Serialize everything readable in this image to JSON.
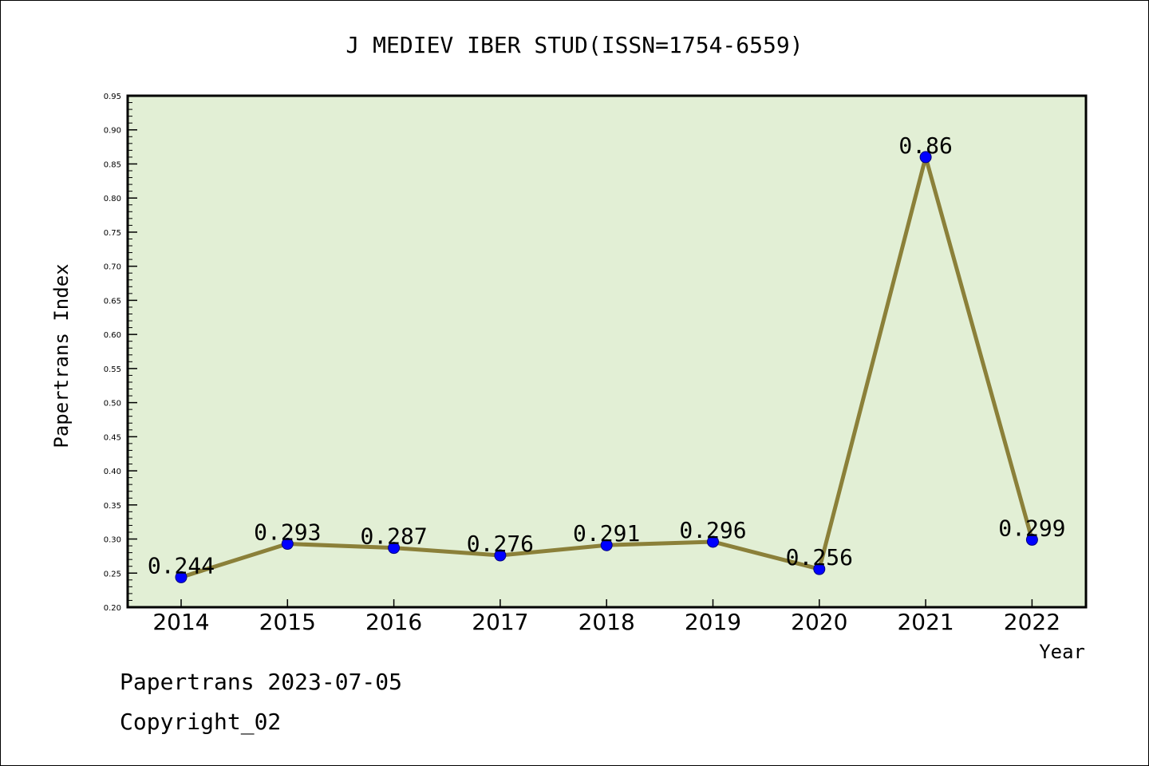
{
  "chart_data": {
    "type": "line",
    "title": "J MEDIEV IBER STUD(ISSN=1754-6559)",
    "xlabel": "Year",
    "ylabel": "Papertrans Index",
    "categories": [
      "2014",
      "2015",
      "2016",
      "2017",
      "2018",
      "2019",
      "2020",
      "2021",
      "2022"
    ],
    "values": [
      0.244,
      0.293,
      0.287,
      0.276,
      0.291,
      0.296,
      0.256,
      0.86,
      0.299
    ],
    "value_labels": [
      "0.244",
      "0.293",
      "0.287",
      "0.276",
      "0.291",
      "0.296",
      "0.256",
      "0.86",
      "0.299"
    ],
    "ylim": [
      0.2,
      0.95
    ],
    "yticks": [
      "0.20",
      "0.25",
      "0.30",
      "0.35",
      "0.40",
      "0.45",
      "0.50",
      "0.55",
      "0.60",
      "0.65",
      "0.70",
      "0.75",
      "0.80",
      "0.85",
      "0.90",
      "0.95"
    ],
    "grid": false,
    "legend": "none",
    "colors": {
      "plot_background": "#e2efd5",
      "line": "#8b8039",
      "marker": "#0000ff",
      "marker_edge": "#000080"
    }
  },
  "footer": {
    "date_line": "Papertrans 2023-07-05",
    "copyright_line": "Copyright_02"
  }
}
